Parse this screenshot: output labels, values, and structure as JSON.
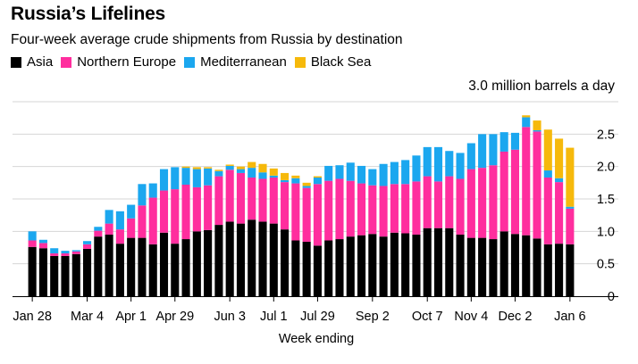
{
  "chart_data": {
    "type": "bar",
    "stacked": true,
    "title": "Russia’s Lifelines",
    "subtitle": "Four-week average crude shipments from Russia by destination",
    "unit_label": "3.0 million barrels a day",
    "xlabel": "Week ending",
    "ylabel": "",
    "ylim": [
      0,
      3.0
    ],
    "y_ticks": [
      0,
      0.5,
      1.0,
      1.5,
      2.0,
      2.5
    ],
    "y_tick_labels": [
      "0",
      "0.5",
      "1.0",
      "1.5",
      "2.0",
      "2.5"
    ],
    "x_tick_labels": [
      "Jan 28",
      "Mar 4",
      "Apr 1",
      "Apr 29",
      "Jun 3",
      "Jul 1",
      "Jul 29",
      "Sep 2",
      "Oct 7",
      "Nov 4",
      "Dec 2",
      "Jan 6"
    ],
    "x_tick_positions": [
      0,
      5,
      9,
      13,
      18,
      22,
      26,
      31,
      36,
      40,
      44,
      49
    ],
    "legend_position": "top-left",
    "grid": true,
    "colors": {
      "Asia": "#000000",
      "Northern Europe": "#ff2e9e",
      "Mediterranean": "#1ba7ef",
      "Black Sea": "#f6b90b"
    },
    "series": [
      {
        "name": "Asia",
        "values": [
          0.76,
          0.74,
          0.62,
          0.62,
          0.65,
          0.73,
          0.92,
          0.95,
          0.81,
          0.9,
          0.9,
          0.8,
          0.98,
          0.81,
          0.88,
          1.0,
          1.02,
          1.1,
          1.15,
          1.12,
          1.18,
          1.15,
          1.12,
          1.03,
          0.86,
          0.84,
          0.78,
          0.86,
          0.88,
          0.92,
          0.94,
          0.96,
          0.92,
          0.98,
          0.97,
          0.95,
          1.05,
          1.05,
          1.05,
          0.95,
          0.9,
          0.9,
          0.88,
          1.0,
          0.96,
          0.94,
          0.89,
          0.8,
          0.81,
          0.8
        ]
      },
      {
        "name": "Northern Europe",
        "values": [
          0.1,
          0.08,
          0.04,
          0.04,
          0.04,
          0.07,
          0.09,
          0.17,
          0.22,
          0.3,
          0.5,
          0.72,
          0.65,
          0.84,
          0.84,
          0.68,
          0.69,
          0.75,
          0.8,
          0.78,
          0.65,
          0.66,
          0.71,
          0.73,
          0.88,
          0.83,
          0.95,
          0.92,
          0.93,
          0.86,
          0.8,
          0.75,
          0.78,
          0.75,
          0.76,
          0.82,
          0.8,
          0.72,
          0.8,
          0.86,
          1.06,
          1.08,
          1.14,
          1.23,
          1.3,
          1.67,
          1.65,
          1.03,
          0.95,
          0.55
        ]
      },
      {
        "name": "Mediterranean",
        "values": [
          0.14,
          0.05,
          0.08,
          0.04,
          0.02,
          0.05,
          0.06,
          0.21,
          0.28,
          0.21,
          0.33,
          0.22,
          0.33,
          0.34,
          0.26,
          0.28,
          0.26,
          0.08,
          0.06,
          0.06,
          0.15,
          0.1,
          0.03,
          0.03,
          0.08,
          0.03,
          0.1,
          0.23,
          0.21,
          0.28,
          0.27,
          0.25,
          0.34,
          0.34,
          0.37,
          0.4,
          0.45,
          0.53,
          0.39,
          0.4,
          0.4,
          0.52,
          0.48,
          0.3,
          0.26,
          0.15,
          0.02,
          0.11,
          0.06,
          0.03
        ]
      },
      {
        "name": "Black Sea",
        "values": [
          0,
          0,
          0,
          0,
          0,
          0,
          0,
          0,
          0,
          0,
          0,
          0,
          0,
          0,
          0.02,
          0.03,
          0.02,
          0.02,
          0.02,
          0.04,
          0.09,
          0.13,
          0.11,
          0.11,
          0.04,
          0.05,
          0.02,
          0,
          0,
          0,
          0,
          0,
          0,
          0,
          0,
          0,
          0,
          0,
          0,
          0,
          0,
          0,
          0,
          0,
          0,
          0.03,
          0.15,
          0.63,
          0.61,
          0.91
        ]
      }
    ]
  }
}
